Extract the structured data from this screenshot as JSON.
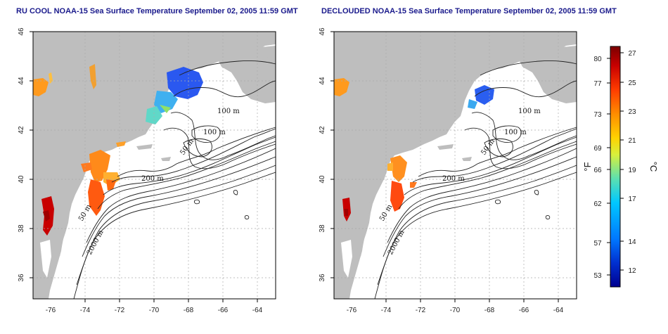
{
  "titles": {
    "left": "RU COOL NOAA-15 Sea Surface Temperature September 02, 2005 11:59 GMT",
    "right": "DECLOUDED NOAA-15 Sea Surface Temperature September 02, 2005 11:59 GMT"
  },
  "axes": {
    "longitude_ticks": [
      "-76",
      "-74",
      "-72",
      "-70",
      "-68",
      "-66",
      "-64"
    ],
    "latitude_ticks": [
      "46",
      "44",
      "42",
      "40",
      "38",
      "36"
    ]
  },
  "contour_labels": {
    "left": [
      "100 m",
      "100 m",
      "50 m",
      "200 m",
      "50 m",
      "2000 m"
    ],
    "right": [
      "100 m",
      "100 m",
      "50 m",
      "200 m",
      "50 m",
      "2000 m"
    ]
  },
  "colorbar": {
    "fahrenheit_ticks": [
      "80",
      "77",
      "73",
      "69",
      "66",
      "62",
      "57",
      "53"
    ],
    "celsius_ticks": [
      "27",
      "25",
      "23",
      "21",
      "19",
      "17",
      "14",
      "12"
    ],
    "unit_f": "°F",
    "unit_c": "°C",
    "colors": [
      "#7a0000",
      "#c80000",
      "#ff3c00",
      "#ff8c00",
      "#ffd200",
      "#d8f03c",
      "#5ce0b0",
      "#00c8ff",
      "#0078ff",
      "#0030d0",
      "#000090"
    ]
  },
  "colors": {
    "land": "#bebebe",
    "ocean": "#ffffff",
    "contour": "#222222",
    "grid": "#aaaaaa",
    "title": "#1a1a8c"
  }
}
